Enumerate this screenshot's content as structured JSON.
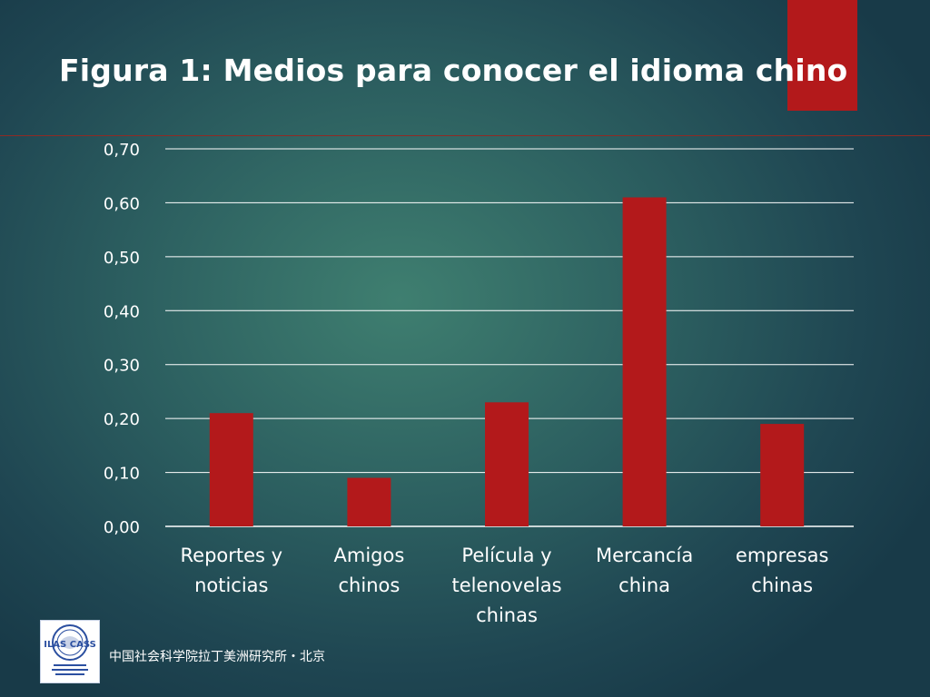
{
  "slide": {
    "title": "Figura 1: Medios para conocer el idioma chino",
    "footer": "中国社会科学院拉丁美洲研究所・北京",
    "logo_text": "ILAS CASS"
  },
  "colors": {
    "bar": "#b3191b",
    "accent": "#b3191b",
    "grid": "#ffffff",
    "text": "#ffffff"
  },
  "chart_data": {
    "type": "bar",
    "categories": [
      [
        "Reportes y",
        "noticias"
      ],
      [
        "Amigos",
        "chinos"
      ],
      [
        "Película y",
        "telenovelas",
        "chinas"
      ],
      [
        "Mercancía",
        "china"
      ],
      [
        "empresas",
        "chinas"
      ]
    ],
    "values": [
      0.21,
      0.09,
      0.23,
      0.61,
      0.19
    ],
    "yticks": [
      "0,00",
      "0,10",
      "0,20",
      "0,30",
      "0,40",
      "0,50",
      "0,60",
      "0,70"
    ],
    "ylim": [
      0,
      0.7
    ],
    "grid": true,
    "legend": "none"
  }
}
